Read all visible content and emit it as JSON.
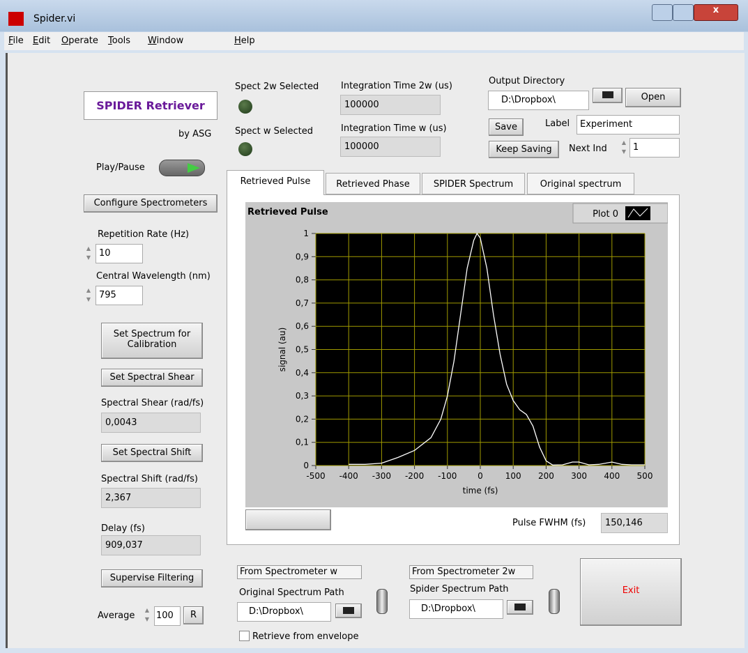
{
  "window": {
    "title": "Spider.vi"
  },
  "menu": [
    "File",
    "Edit",
    "Operate",
    "Tools",
    "Window",
    "Help"
  ],
  "controls": {
    "app_title": "SPIDER Retriever",
    "author": "by ASG",
    "play_pause": "Play/Pause",
    "configure_button": "Configure Spectrometers",
    "repetition_rate": {
      "label": "Repetition Rate (Hz)",
      "value": "10"
    },
    "central_wavelength": {
      "label": "Central Wavelength (nm)",
      "value": "795"
    },
    "set_spectrum_button": "Set Spectrum for Calibration",
    "set_shear_button": "Set Spectral Shear",
    "spectral_shear": {
      "label": "Spectral Shear (rad/fs)",
      "value": "0,0043"
    },
    "set_shift_button": "Set Spectral Shift",
    "spectral_shift": {
      "label": "Spectral Shift (rad/fs)",
      "value": "2,367"
    },
    "delay": {
      "label": "Delay (fs)",
      "value": "909,037"
    },
    "supervise_button": "Supervise Filtering",
    "average": {
      "label": "Average",
      "value": "100",
      "reset": "R"
    },
    "spect_2w_selected": "Spect 2w Selected",
    "spect_w_selected": "Spect w Selected",
    "integration_2w": {
      "label": "Integration Time 2w (us)",
      "value": "100000"
    },
    "integration_w": {
      "label": "Integration Time w (us)",
      "value": "100000"
    },
    "output_directory": {
      "label": "Output Directory",
      "value": "D:\\Dropbox\\",
      "open": "Open"
    },
    "save_button": "Save",
    "label": {
      "label": "Label",
      "value": "Experiment"
    },
    "keep_saving_button": "Keep Saving",
    "next_ind": {
      "label": "Next Ind",
      "value": "1"
    },
    "tabs": [
      "Retrieved Pulse",
      "Retrieved Phase",
      "SPIDER Spectrum",
      "Original spectrum"
    ],
    "pulse_fwhm": {
      "label": "Pulse FWHM (fs)",
      "value": "150,146"
    },
    "from_w": {
      "header": "From Spectrometer w",
      "label": "Original Spectrum Path",
      "value": "D:\\Dropbox\\"
    },
    "from_2w": {
      "header": "From Spectrometer 2w",
      "label": "Spider Spectrum Path",
      "value": "D:\\Dropbox\\"
    },
    "retrieve_envelope": "Retrieve from envelope",
    "exit_button": "Exit"
  },
  "chart_data": {
    "type": "line",
    "title": "Retrieved Pulse",
    "x_label": "time (fs)",
    "y_label": "signal (au)",
    "x": [
      -400,
      -350,
      -300,
      -250,
      -200,
      -150,
      -120,
      -100,
      -80,
      -60,
      -40,
      -20,
      -10,
      0,
      20,
      40,
      60,
      80,
      100,
      120,
      140,
      160,
      180,
      200,
      220,
      250,
      280,
      300,
      330,
      360,
      400,
      430,
      460,
      500
    ],
    "series": [
      {
        "name": "Plot 0",
        "color": "#ffffff",
        "values": [
          0.005,
          0.005,
          0.01,
          0.035,
          0.065,
          0.12,
          0.2,
          0.3,
          0.45,
          0.65,
          0.85,
          0.97,
          1.0,
          0.98,
          0.85,
          0.65,
          0.48,
          0.35,
          0.28,
          0.24,
          0.22,
          0.17,
          0.08,
          0.02,
          0.002,
          0.003,
          0.015,
          0.015,
          0.003,
          0.005,
          0.015,
          0.005,
          0.003,
          0.003
        ]
      }
    ],
    "xlim": [
      -500,
      500
    ],
    "ylim": [
      0,
      1
    ],
    "xticks": [
      -500,
      -400,
      -300,
      -200,
      -100,
      0,
      100,
      200,
      300,
      400,
      500
    ],
    "yticks": [
      0,
      {
        "value": 0.1,
        "label": "0,1"
      },
      {
        "value": 0.2,
        "label": "0,2"
      },
      {
        "value": 0.3,
        "label": "0,3"
      },
      {
        "value": 0.4,
        "label": "0,4"
      },
      {
        "value": 0.5,
        "label": "0,5"
      },
      {
        "value": 0.6,
        "label": "0,6"
      },
      {
        "value": 0.7,
        "label": "0,7"
      },
      {
        "value": 0.8,
        "label": "0,8"
      },
      {
        "value": 0.9,
        "label": "0,9"
      },
      1
    ],
    "grid": true,
    "grid_color": "#a09a00",
    "plot_background": "#000000"
  }
}
